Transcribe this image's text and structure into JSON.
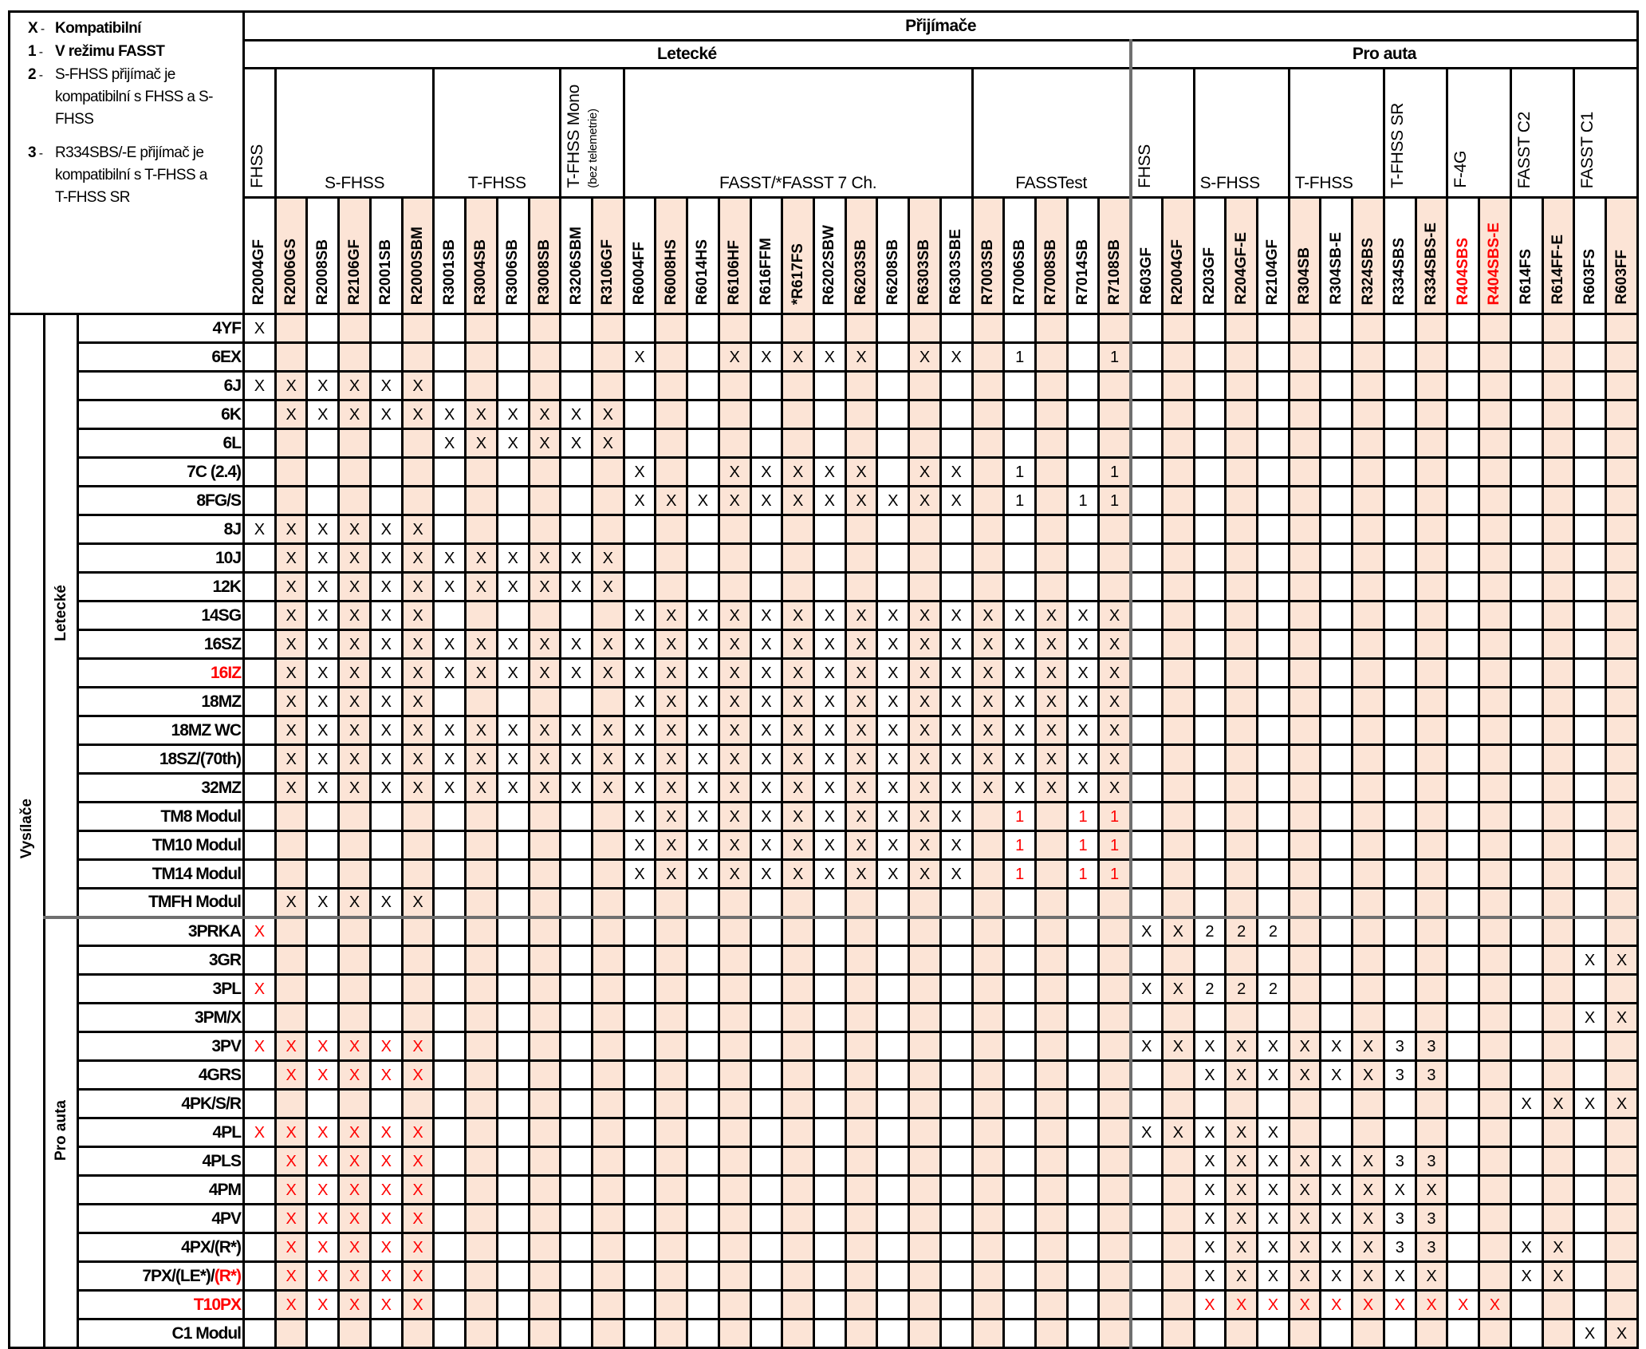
{
  "legend": [
    {
      "key": "X",
      "text": "Kompatibilní",
      "bold": true
    },
    {
      "key": "1",
      "text": "V režimu FASST",
      "bold": true
    },
    {
      "key": "2",
      "text": "S-FHSS přijímač je kompatibilní s FHSS a S-FHSS",
      "bold": false
    },
    {
      "key": "3",
      "text": "R334SBS/-E přijímač je kompatibilní s T-FHSS a T-FHSS SR",
      "bold": false
    }
  ],
  "receivers_title": "Přijímače",
  "transmitters_title": "Vysílače",
  "receiver_sections": [
    {
      "label": "Letecké",
      "span": 28
    },
    {
      "label": "Pro auta",
      "span": 16
    }
  ],
  "receiver_groups": [
    {
      "label": "FHSS",
      "span": 1,
      "vertical": true
    },
    {
      "label": "S-FHSS",
      "span": 5,
      "vertical": false
    },
    {
      "label": "T-FHSS",
      "span": 4,
      "vertical": false
    },
    {
      "label": "T-FHSS Mono",
      "sublabel": "(bez telemetrie)",
      "span": 2,
      "vertical": true
    },
    {
      "label": "FASST/*FASST 7 Ch.",
      "span": 11,
      "vertical": false
    },
    {
      "label": "FASSTest",
      "span": 5,
      "vertical": false
    },
    {
      "label": "FHSS",
      "span": 2,
      "vertical": true
    },
    {
      "label": "S-FHSS",
      "span": 3,
      "vertical": false,
      "left": true
    },
    {
      "label": "T-FHSS",
      "span": 3,
      "vertical": false,
      "left": true
    },
    {
      "label": "T-FHSS SR",
      "span": 2,
      "vertical": true
    },
    {
      "label": "F-4G",
      "span": 2,
      "vertical": true
    },
    {
      "label": "FASST C2",
      "span": 2,
      "vertical": true
    },
    {
      "label": "FASST C1",
      "span": 2,
      "vertical": true
    }
  ],
  "receiver_models": [
    {
      "name": "R2004GF"
    },
    {
      "name": "R2006GS"
    },
    {
      "name": "R2008SB"
    },
    {
      "name": "R2106GF"
    },
    {
      "name": "R2001SB"
    },
    {
      "name": "R2000SBM"
    },
    {
      "name": "R3001SB"
    },
    {
      "name": "R3004SB"
    },
    {
      "name": "R3006SB"
    },
    {
      "name": "R3008SB"
    },
    {
      "name": "R3206SBM"
    },
    {
      "name": "R3106GF"
    },
    {
      "name": "R6004FF"
    },
    {
      "name": "R6008HS"
    },
    {
      "name": "R6014HS"
    },
    {
      "name": "R6106HF"
    },
    {
      "name": "R616FFM"
    },
    {
      "name": "*R617FS"
    },
    {
      "name": "R6202SBW"
    },
    {
      "name": "R6203SB"
    },
    {
      "name": "R6208SB"
    },
    {
      "name": "R6303SB"
    },
    {
      "name": "R6303SBE"
    },
    {
      "name": "R7003SB"
    },
    {
      "name": "R7006SB"
    },
    {
      "name": "R7008SB"
    },
    {
      "name": "R7014SB"
    },
    {
      "name": "R7108SB"
    },
    {
      "name": "R603GF"
    },
    {
      "name": "R2004GF"
    },
    {
      "name": "R203GF"
    },
    {
      "name": "R204GF-E"
    },
    {
      "name": "R2104GF"
    },
    {
      "name": "R304SB"
    },
    {
      "name": "R304SB-E"
    },
    {
      "name": "R324SBS"
    },
    {
      "name": "R334SBS"
    },
    {
      "name": "R334SBS-E"
    },
    {
      "name": "R404SBS",
      "red": true
    },
    {
      "name": "R404SBS-E",
      "red": true
    },
    {
      "name": "R614FS"
    },
    {
      "name": "R614FF-E"
    },
    {
      "name": "R603FS"
    },
    {
      "name": "R603FF"
    }
  ],
  "transmitter_sections": [
    {
      "label": "Letecké",
      "rows": [
        {
          "name": [
            {
              "text": "4YF"
            }
          ],
          "cells": "X ..... .... .. ........... ..... | .. ... ... .. .. .. .."
        },
        {
          "name": [
            {
              "text": "6EX"
            }
          ],
          "cells": ". ..... .... .. X..XXXXX.XX .1..1 | .. ... ... .. .. .. .."
        },
        {
          "name": [
            {
              "text": "6J"
            }
          ],
          "cells": "X XXXXX .... .. ........... ..... | .. ... ... .. .. .. .."
        },
        {
          "name": [
            {
              "text": "6K"
            }
          ],
          "cells": ". XXXXX XXXX XX ........... ..... | .. ... ... .. .. .. .."
        },
        {
          "name": [
            {
              "text": "6L"
            }
          ],
          "cells": ". ..... XXXX XX ........... ..... | .. ... ... .. .. .. .."
        },
        {
          "name": [
            {
              "text": "7C (2.4)"
            }
          ],
          "cells": ". ..... .... .. X..XXXXX.XX .1..1 | .. ... ... .. .. .. .."
        },
        {
          "name": [
            {
              "text": "8FG/S"
            }
          ],
          "cells": ". ..... .... .. XXXXXXXXXXX .1.11 | .. ... ... .. .. .. .."
        },
        {
          "name": [
            {
              "text": "8J"
            }
          ],
          "cells": "X XXXXX .... .. ........... ..... | .. ... ... .. .. .. .."
        },
        {
          "name": [
            {
              "text": "10J"
            }
          ],
          "cells": ". XXXXX XXXX XX ........... ..... | .. ... ... .. .. .. .."
        },
        {
          "name": [
            {
              "text": "12K"
            }
          ],
          "cells": ". XXXXX XXXX XX ........... ..... | .. ... ... .. .. .. .."
        },
        {
          "name": [
            {
              "text": "14SG"
            }
          ],
          "cells": ". XXXXX .... .. XXXXXXXXXXX XXXXX | .. ... ... .. .. .. .."
        },
        {
          "name": [
            {
              "text": "16SZ"
            }
          ],
          "cells": ". XXXXX XXXX XX XXXXXXXXXXX XXXXX | .. ... ... .. .. .. .."
        },
        {
          "name": [
            {
              "text": "16IZ",
              "red": true
            }
          ],
          "cells": ". XXXXX XXXX XX XXXXXXXXXXX XXXXX | .. ... ... .. .. .. .."
        },
        {
          "name": [
            {
              "text": "18MZ"
            }
          ],
          "cells": ". XXXXX .... .. XXXXXXXXXXX XXXXX | .. ... ... .. .. .. .."
        },
        {
          "name": [
            {
              "text": "18MZ WC"
            }
          ],
          "cells": ". XXXXX XXXX XX XXXXXXXXXXX XXXXX | .. ... ... .. .. .. .."
        },
        {
          "name": [
            {
              "text": "18SZ/(70th)"
            }
          ],
          "cells": ". XXXXX XXXX XX XXXXXXXXXXX XXXXX | .. ... ... .. .. .. .."
        },
        {
          "name": [
            {
              "text": "32MZ"
            }
          ],
          "cells": ". XXXXX XXXX XX XXXXXXXXXXX XXXXX | .. ... ... .. .. .. .."
        },
        {
          "name": [
            {
              "text": "TM8 Modul"
            }
          ],
          "cells": ". ..... .... .. XXXXXXXXXXX .r.rr | .. ... ... .. .. .. .."
        },
        {
          "name": [
            {
              "text": "TM10 Modul"
            }
          ],
          "cells": ". ..... .... .. XXXXXXXXXXX .r.rr | .. ... ... .. .. .. .."
        },
        {
          "name": [
            {
              "text": "TM14 Modul"
            }
          ],
          "cells": ". ..... .... .. XXXXXXXXXXX .r.rr | .. ... ... .. .. .. .."
        },
        {
          "name": [
            {
              "text": "TMFH Modul"
            }
          ],
          "cells": ". XXXXX .... .. ........... ..... | .. ... ... .. .. .. .."
        }
      ]
    },
    {
      "label": "Pro auta",
      "rows": [
        {
          "name": [
            {
              "text": "3PRKA"
            }
          ],
          "cells": "x ..... .... .. ........... ..... | XX 222 ... .. .. .. .."
        },
        {
          "name": [
            {
              "text": "3GR"
            }
          ],
          "cells": ". ..... .... .. ........... ..... | .. ... ... .. .. .. XX"
        },
        {
          "name": [
            {
              "text": "3PL"
            }
          ],
          "cells": "x ..... .... .. ........... ..... | XX 222 ... .. .. .. .."
        },
        {
          "name": [
            {
              "text": "3PM/X"
            }
          ],
          "cells": ". ..... .... .. ........... ..... | .. ... ... .. .. .. XX"
        },
        {
          "name": [
            {
              "text": "3PV"
            }
          ],
          "cells": "x xxxxx .... .. ........... ..... | XX XXX XXX 33 .. .. .."
        },
        {
          "name": [
            {
              "text": "4GRS"
            }
          ],
          "cells": ". xxxxx .... .. ........... ..... | .. XXX XXX 33 .. .. .."
        },
        {
          "name": [
            {
              "text": "4PK/S/R"
            }
          ],
          "cells": ". ..... .... .. ........... ..... | .. ... ... .. .. XX XX"
        },
        {
          "name": [
            {
              "text": "4PL"
            }
          ],
          "cells": "x xxxxx .... .. ........... ..... | XX XXX ... .. .. .. .."
        },
        {
          "name": [
            {
              "text": "4PLS"
            }
          ],
          "cells": ". xxxxx .... .. ........... ..... | .. XXX XXX 33 .. .. .."
        },
        {
          "name": [
            {
              "text": "4PM"
            }
          ],
          "cells": ". xxxxx .... .. ........... ..... | .. XXX XXX XX .. .. .."
        },
        {
          "name": [
            {
              "text": "4PV"
            }
          ],
          "cells": ". xxxxx .... .. ........... ..... | .. XXX XXX 33 .. .. .."
        },
        {
          "name": [
            {
              "text": "4PX/(R*)"
            }
          ],
          "cells": ". xxxxx .... .. ........... ..... | .. XXX XXX 33 .. XX .."
        },
        {
          "name": [
            {
              "text": "7PX/(LE*)/"
            },
            {
              "text": "(R*)",
              "red": true
            }
          ],
          "cells": ". xxxxx .... .. ........... ..... | .. XXX XXX XX .. XX .."
        },
        {
          "name": [
            {
              "text": "T10PX",
              "red": true
            }
          ],
          "cells": ". xxxxx .... .. ........... ..... | .. xxx xxx xx xx .. .."
        },
        {
          "name": [
            {
              "text": "C1 Modul"
            }
          ],
          "cells": ". ..... .... .. ........... ..... | .. ... ... .. .. .. XX"
        }
      ]
    }
  ],
  "colors": {
    "shade": "#fce4d6",
    "highlight": "#ff0000",
    "separator": "#6f6f6f"
  }
}
